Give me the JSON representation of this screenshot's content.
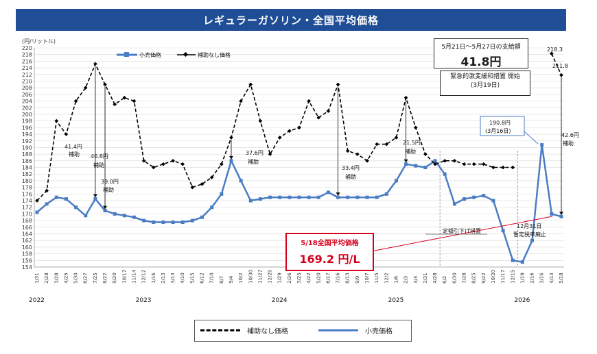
{
  "title": "レギュラーガソリン・全国平均価格",
  "colors": {
    "title_bg": "#1f4d96",
    "retail": "#4a7cc4",
    "no_subsidy": "#000000",
    "highlight": "#d6001c"
  },
  "legend": {
    "retail": "小売価格",
    "no_subsidy": "補助なし価格"
  },
  "payment_box": {
    "line1": "5月21日～5月27日の支給額",
    "line2": "41.8円"
  },
  "measure_box": {
    "line1": "緊急的激変緩和措置 開始",
    "line2": "(3月19日)"
  },
  "avg_box": {
    "line1": "5/18全国平均価格",
    "line2": "169.2 円/L"
  },
  "annotations": {
    "a1": "41.4円",
    "a1b": "補助",
    "a2": "40.8円",
    "a2b": "補助",
    "a3": "39.0円",
    "a3b": "補助",
    "a4": "37.6円",
    "a4b": "補助",
    "a5": "33.4円",
    "a5b": "補助",
    "a6": "21.5円",
    "a6b": "補助",
    "a7": "42.6円",
    "a7b": "補助",
    "peak1": "218.3",
    "peak2": "211.8",
    "spike1": "190.8円",
    "spike2": "(3月16日)",
    "tei": "定額引下げ措置",
    "zan1": "12月31日",
    "zan2": "暫定税率廃止"
  },
  "chart_data": {
    "type": "line",
    "title": "レギュラーガソリン・全国平均価格",
    "ylabel": "(円/リットル)",
    "ylim": [
      154,
      220
    ],
    "ytick_step": 2,
    "x": [
      "1/31",
      "2/28",
      "3/28",
      "4/25",
      "5/30",
      "6/27",
      "7/25",
      "8/22",
      "9/20",
      "10/17",
      "11/14",
      "12/12",
      "1/16",
      "2/13",
      "3/13",
      "4/10",
      "5/15",
      "6/12",
      "7/10",
      "8/7",
      "9/4",
      "10/2",
      "10/30",
      "11/27",
      "12/25",
      "1/29",
      "2/26",
      "3/25",
      "4/22",
      "5/20",
      "6/17",
      "7/16",
      "8/13",
      "9/9",
      "10/7",
      "11/5",
      "12/2",
      "1/6",
      "2/3",
      "3/3",
      "3/31",
      "4/28",
      "6/2",
      "6/30",
      "7/28",
      "8/25",
      "9/22",
      "10/20",
      "11/17",
      "12/15",
      "1/19",
      "2/16",
      "3/16",
      "4/13",
      "5/18"
    ],
    "year_labels": [
      "2022",
      "2023",
      "2024",
      "2025",
      "2026"
    ],
    "series": [
      {
        "name": "小売価格",
        "values": [
          170.5,
          173,
          175,
          174.5,
          172,
          169.5,
          174.5,
          171,
          170,
          169.5,
          169,
          168,
          167.5,
          167.5,
          167.5,
          167.5,
          168,
          169,
          172,
          176,
          186,
          180,
          174,
          174.5,
          175,
          175,
          175,
          175,
          175,
          175,
          176.5,
          175,
          175,
          175,
          175,
          175,
          176,
          180,
          185,
          184.5,
          184,
          186,
          182,
          173,
          174.5,
          175,
          175.5,
          174,
          165,
          156,
          155.5,
          162,
          190.8,
          170,
          169.2
        ]
      },
      {
        "name": "補助なし価格",
        "values": [
          174,
          177,
          198,
          194,
          204,
          208,
          215.2,
          209,
          203,
          205,
          204,
          186,
          184,
          185,
          186,
          185,
          178,
          179,
          181,
          185,
          193,
          204,
          209,
          198,
          188,
          193,
          195,
          196,
          204,
          199,
          201,
          209,
          189,
          188,
          186,
          191,
          191,
          193,
          205,
          196,
          188,
          185,
          186,
          186,
          185,
          185,
          185,
          184,
          184,
          184,
          null,
          null,
          null,
          218.3,
          211.8
        ]
      }
    ]
  }
}
